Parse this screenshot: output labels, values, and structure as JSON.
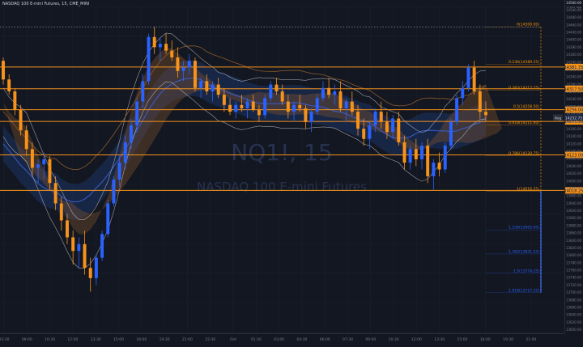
{
  "header": {
    "symbol_line": "NASDAQ 100 E-mini Futures, 15, CME_MINI"
  },
  "top_right": {
    "value": "14560.00",
    "label": "1 hour ago"
  },
  "watermark": {
    "ticker": "NQ1!, 15",
    "name": "NASDAQ 100 E-mini Futures"
  },
  "colors": {
    "background": "#131722",
    "up": "#2962ff",
    "down": "#f7931a",
    "level": "#f7931a",
    "fib": "#ff9800",
    "cloud": "#8b5a2b",
    "blue_band": "#1e3a70",
    "ma_blue": "#3a5fcd",
    "envelope": "#bfbfbf"
  },
  "price_axis": {
    "labels": [
      "14500.00",
      "14480.00",
      "14460.00",
      "14440.00",
      "14400.00",
      "14380.00",
      "14360.00",
      "14340.00",
      "14320.00",
      "14300.00",
      "14280.00",
      "14260.00",
      "14240.00",
      "14220.00",
      "14200.00",
      "14180.00",
      "14160.00",
      "14140.00",
      "14120.00",
      "14100.00",
      "14060.00",
      "14040.00",
      "14020.00",
      "14000.00",
      "13980.00",
      "13960.00",
      "13940.00",
      "13920.00",
      "13900.00",
      "13880.00",
      "13860.00",
      "13840.00",
      "13820.00",
      "13800.00",
      "13780.00",
      "13760.00",
      "13740.00",
      "13720.00",
      "13700.00",
      "13680.00",
      "13660.00",
      "13640.00",
      "13620.00",
      "13600.00"
    ]
  },
  "time_axis": {
    "labels": [
      "03:30",
      "09:00",
      "10:30",
      "12:00",
      "13:30",
      "15:00",
      "18:00",
      "19:30",
      "21:00",
      "22:30",
      "Oct",
      "01:30",
      "03:00",
      "04:30",
      "06:00",
      "07:30",
      "09:00",
      "10:30",
      "12:00",
      "13:30",
      "15:00",
      "18:00",
      "19:30",
      "21:00"
    ]
  },
  "fib_levels": [
    {
      "label": "0(14500.00)",
      "price": 14500.0
    },
    {
      "label": "0.236(14389.25)",
      "price": 14389.25
    },
    {
      "label": "0.382(14313.25)",
      "price": 14313.25
    },
    {
      "label": "0.5(14258.50)",
      "price": 14258.5
    },
    {
      "label": "0.618(14211.00)",
      "price": 14211.0
    },
    {
      "label": "0.786(14120.75)",
      "price": 14120.75
    },
    {
      "label": "1(14016.25)",
      "price": 14016.25
    },
    {
      "label": "1.236(13902.00)",
      "price": 13902.0
    },
    {
      "label": "1.382(13831.25)",
      "price": 13831.25
    },
    {
      "label": "1.5(13774.25)",
      "price": 13774.25
    },
    {
      "label": "1.618(13717.25)",
      "price": 13717.25
    }
  ],
  "horizontal_levels": [
    {
      "label": "14381.75",
      "price": 14381.75
    },
    {
      "label": "14317.50",
      "price": 14317.5
    },
    {
      "label": "14256.00",
      "price": 14256.0
    },
    {
      "label": "14221.50",
      "price": 14221.5
    },
    {
      "label": "14123.00",
      "price": 14123.0
    },
    {
      "label": "14018.25",
      "price": 14018.25
    }
  ],
  "current_price": {
    "tag": "Avg",
    "value": "14232.75"
  },
  "chart_data": {
    "type": "candlestick",
    "title": "NASDAQ 100 E-mini Futures, 15, CME_MINI",
    "interval": "15",
    "y_range": [
      13600,
      14560
    ],
    "candles": [
      [
        14400,
        14410,
        14330,
        14345
      ],
      [
        14345,
        14360,
        14300,
        14310
      ],
      [
        14310,
        14320,
        14240,
        14255
      ],
      [
        14255,
        14270,
        14180,
        14195
      ],
      [
        14195,
        14210,
        14120,
        14140
      ],
      [
        14140,
        14160,
        14060,
        14085
      ],
      [
        14085,
        14110,
        14040,
        14095
      ],
      [
        14095,
        14130,
        14050,
        14110
      ],
      [
        14110,
        14120,
        14020,
        14040
      ],
      [
        14040,
        14060,
        13960,
        13980
      ],
      [
        13980,
        14000,
        13900,
        13930
      ],
      [
        13930,
        13950,
        13860,
        13880
      ],
      [
        13880,
        13900,
        13800,
        13840
      ],
      [
        13840,
        13880,
        13790,
        13860
      ],
      [
        13860,
        13900,
        13770,
        13790
      ],
      [
        13790,
        13820,
        13720,
        13760
      ],
      [
        13760,
        13830,
        13740,
        13820
      ],
      [
        13820,
        13900,
        13810,
        13890
      ],
      [
        13890,
        13990,
        13880,
        13980
      ],
      [
        13980,
        14060,
        13970,
        14050
      ],
      [
        14050,
        14120,
        14030,
        14100
      ],
      [
        14100,
        14180,
        14080,
        14160
      ],
      [
        14160,
        14230,
        14140,
        14210
      ],
      [
        14210,
        14290,
        14190,
        14280
      ],
      [
        14280,
        14360,
        14260,
        14340
      ],
      [
        14340,
        14480,
        14330,
        14470
      ],
      [
        14470,
        14500,
        14420,
        14440
      ],
      [
        14440,
        14470,
        14400,
        14450
      ],
      [
        14450,
        14480,
        14420,
        14430
      ],
      [
        14430,
        14460,
        14400,
        14410
      ],
      [
        14410,
        14440,
        14350,
        14370
      ],
      [
        14370,
        14400,
        14340,
        14380
      ],
      [
        14380,
        14420,
        14360,
        14400
      ],
      [
        14400,
        14410,
        14310,
        14320
      ],
      [
        14320,
        14350,
        14290,
        14340
      ],
      [
        14340,
        14360,
        14300,
        14310
      ],
      [
        14310,
        14340,
        14280,
        14330
      ],
      [
        14330,
        14350,
        14290,
        14300
      ],
      [
        14300,
        14320,
        14250,
        14270
      ],
      [
        14270,
        14290,
        14240,
        14250
      ],
      [
        14250,
        14280,
        14230,
        14270
      ],
      [
        14270,
        14300,
        14250,
        14260
      ],
      [
        14260,
        14290,
        14230,
        14280
      ],
      [
        14280,
        14300,
        14250,
        14255
      ],
      [
        14255,
        14270,
        14220,
        14240
      ],
      [
        14240,
        14300,
        14230,
        14290
      ],
      [
        14290,
        14340,
        14280,
        14330
      ],
      [
        14330,
        14350,
        14300,
        14310
      ],
      [
        14310,
        14330,
        14270,
        14280
      ],
      [
        14280,
        14300,
        14230,
        14250
      ],
      [
        14250,
        14280,
        14220,
        14270
      ],
      [
        14270,
        14300,
        14250,
        14260
      ],
      [
        14260,
        14270,
        14200,
        14220
      ],
      [
        14220,
        14260,
        14190,
        14250
      ],
      [
        14250,
        14300,
        14240,
        14290
      ],
      [
        14290,
        14340,
        14280,
        14320
      ],
      [
        14320,
        14350,
        14290,
        14300
      ],
      [
        14300,
        14330,
        14270,
        14310
      ],
      [
        14310,
        14340,
        14250,
        14260
      ],
      [
        14260,
        14290,
        14220,
        14280
      ],
      [
        14280,
        14310,
        14240,
        14250
      ],
      [
        14250,
        14270,
        14180,
        14200
      ],
      [
        14200,
        14230,
        14150,
        14170
      ],
      [
        14170,
        14220,
        14140,
        14210
      ],
      [
        14210,
        14260,
        14190,
        14250
      ],
      [
        14250,
        14280,
        14200,
        14220
      ],
      [
        14220,
        14250,
        14170,
        14190
      ],
      [
        14190,
        14240,
        14170,
        14230
      ],
      [
        14230,
        14250,
        14150,
        14160
      ],
      [
        14160,
        14180,
        14080,
        14100
      ],
      [
        14100,
        14150,
        14080,
        14140
      ],
      [
        14140,
        14170,
        14090,
        14110
      ],
      [
        14110,
        14160,
        14080,
        14150
      ],
      [
        14150,
        14170,
        14040,
        14060
      ],
      [
        14060,
        14110,
        14020,
        14100
      ],
      [
        14100,
        14130,
        14060,
        14080
      ],
      [
        14080,
        14160,
        14070,
        14150
      ],
      [
        14150,
        14230,
        14140,
        14220
      ],
      [
        14220,
        14300,
        14210,
        14290
      ],
      [
        14290,
        14340,
        14270,
        14320
      ],
      [
        14320,
        14390,
        14310,
        14380
      ],
      [
        14380,
        14400,
        14300,
        14310
      ],
      [
        14310,
        14330,
        14230,
        14250
      ],
      [
        14250,
        14280,
        14220,
        14240
      ]
    ]
  }
}
